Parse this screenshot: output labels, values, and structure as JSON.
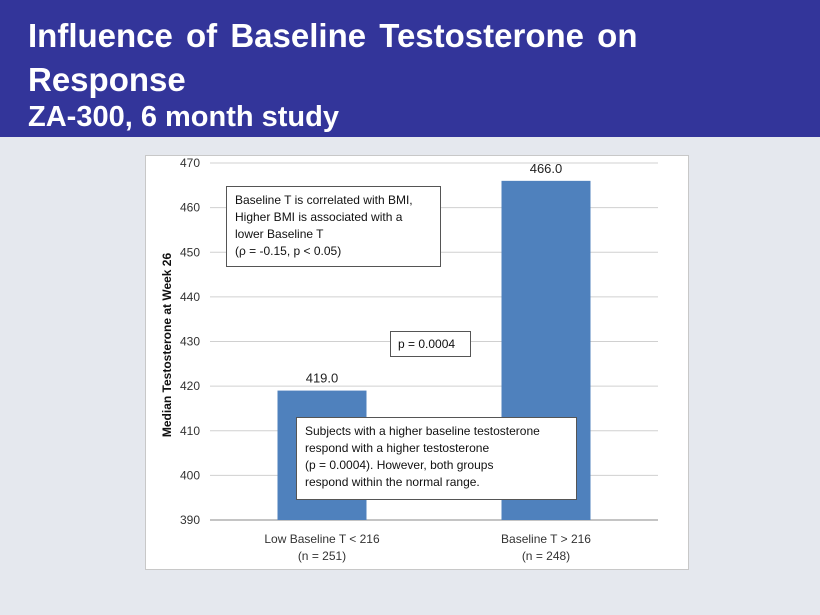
{
  "header": {
    "title": "Influence of Baseline Testosterone on Response",
    "subtitle": "ZA-300, 6 month study"
  },
  "colors": {
    "header_bg": "#33359a",
    "bar": "#4f81bd"
  },
  "chart_data": {
    "type": "bar",
    "ylabel": "Median Testosterone at Week 26",
    "ylim": [
      390,
      470
    ],
    "yticks": [
      390,
      400,
      410,
      420,
      430,
      440,
      450,
      460,
      470
    ],
    "grid": true,
    "categories": [
      {
        "line1": "Low Baseline T < 216",
        "line2": "(n = 251)"
      },
      {
        "line1": "Baseline T > 216",
        "line2": "(n = 248)"
      }
    ],
    "values": [
      419.0,
      466.0
    ],
    "value_labels": [
      "419.0",
      "466.0"
    ],
    "annotations": {
      "bmi_note": [
        "Baseline T is correlated with BMI,",
        "Higher BMI is associated with a",
        "lower Baseline T",
        "(ρ = -0.15, p < 0.05)"
      ],
      "p_value": "p = 0.0004",
      "conclusion": [
        "Subjects with a higher baseline testosterone",
        "respond with a higher testosterone",
        "(p = 0.0004).  However,  both groups",
        "respond within the normal range."
      ]
    }
  }
}
